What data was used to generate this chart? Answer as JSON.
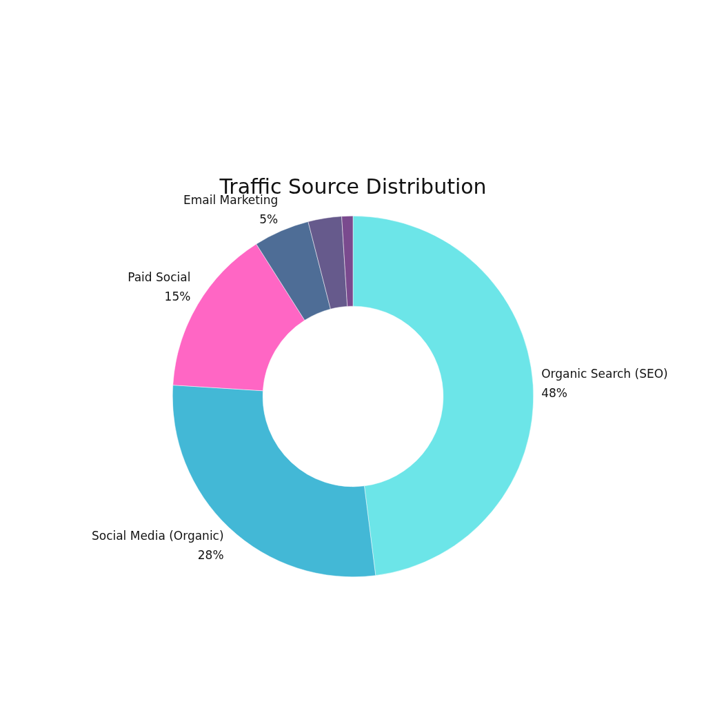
{
  "chart_data": {
    "type": "donut",
    "title": "Traffic Source Distribution",
    "categories": [
      "Organic Search (SEO)",
      "Social Media (Organic)",
      "Paid Social",
      "Email Marketing",
      null,
      null
    ],
    "values": [
      48,
      28,
      15,
      5,
      3,
      1
    ],
    "colors": [
      "#6ce5e8",
      "#43b8d6",
      "#ff66c4",
      "#4e6d96",
      "#665a8c",
      "#7a4a8e"
    ],
    "value_labels": [
      "48%",
      "28%",
      "15%",
      "5%",
      null,
      null
    ],
    "legend": false
  }
}
